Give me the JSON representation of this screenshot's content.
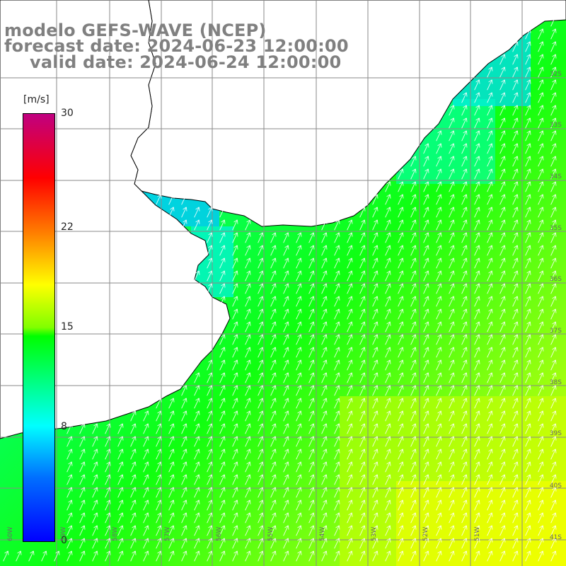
{
  "title": {
    "model": "modelo GEFS-WAVE (NCEP)",
    "forecast": "forecast date: 2024-06-23 12:00:00",
    "valid": "valid date: 2024-06-24 12:00:00"
  },
  "colorbar": {
    "unit": "[m/s]",
    "min": 0,
    "max": 30,
    "ticks": [
      {
        "value": 30,
        "label": "30"
      },
      {
        "value": 22,
        "label": "22"
      },
      {
        "value": 15,
        "label": "15"
      },
      {
        "value": 8,
        "label": "8"
      },
      {
        "value": 0,
        "label": "0"
      }
    ],
    "stops": [
      "#0000ff",
      "#00a0ff",
      "#00ffff",
      "#00ff00",
      "#ffff00",
      "#ff8000",
      "#ff0000",
      "#c00080"
    ]
  },
  "latitude_labels": [
    "32S",
    "33S",
    "34S",
    "35S",
    "36S",
    "37S",
    "38S",
    "39S",
    "40S",
    "41S"
  ],
  "longitude_labels": [
    "60W",
    "59W",
    "58W",
    "57W",
    "56W",
    "55W",
    "54W",
    "53W",
    "52W",
    "51W"
  ],
  "map": {
    "region": "Rio de la Plata estuary and Uruguay coast",
    "variable": "wind speed",
    "arrow_direction": "north-northeast",
    "land_color": "#ffffff",
    "coast_color": "#000000",
    "grid_color": "#8a8a8a",
    "arrow_color": "#ffffff"
  }
}
